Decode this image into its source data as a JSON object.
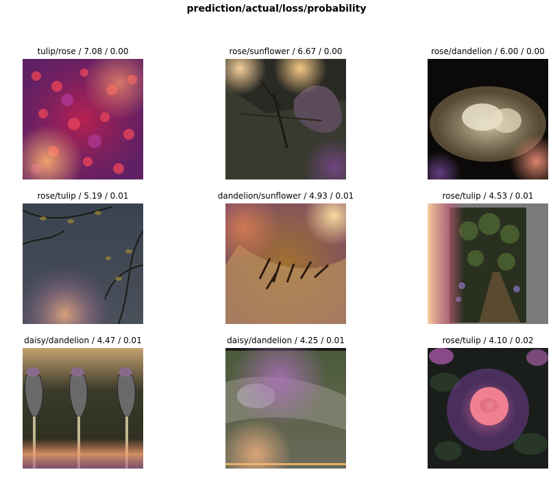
{
  "figure": {
    "title": "prediction/actual/loss/probability"
  },
  "chart_data": {
    "type": "image-grid",
    "title": "prediction/actual/loss/probability",
    "rows": 3,
    "cols": 3,
    "panels": [
      {
        "title": "tulip/rose / 7.08 / 0.00",
        "prediction": "tulip",
        "actual": "rose",
        "loss": 7.08,
        "probability": 0.0,
        "image": "rose-bush-heatmap-image"
      },
      {
        "title": "rose/sunflower / 6.67 / 0.00",
        "prediction": "rose",
        "actual": "sunflower",
        "loss": 6.67,
        "probability": 0.0,
        "image": "insect-on-flower-heatmap-image"
      },
      {
        "title": "rose/dandelion / 6.00 / 0.00",
        "prediction": "rose",
        "actual": "dandelion",
        "loss": 6.0,
        "probability": 0.0,
        "image": "dark-dish-heatmap-image"
      },
      {
        "title": "rose/tulip / 5.19 / 0.01",
        "prediction": "rose",
        "actual": "tulip",
        "loss": 5.19,
        "probability": 0.01,
        "image": "branches-sky-heatmap-image"
      },
      {
        "title": "dandelion/sunflower / 4.93 / 0.01",
        "prediction": "dandelion",
        "actual": "sunflower",
        "loss": 4.93,
        "probability": 0.01,
        "image": "sunflower-closeup-heatmap-image"
      },
      {
        "title": "rose/tulip / 4.53 / 0.01",
        "prediction": "rose",
        "actual": "tulip",
        "loss": 4.53,
        "probability": 0.01,
        "image": "garden-path-heatmap-image"
      },
      {
        "title": "daisy/dandelion / 4.47 / 0.01",
        "prediction": "daisy",
        "actual": "dandelion",
        "loss": 4.47,
        "probability": 0.01,
        "image": "dandelion-buds-heatmap-image"
      },
      {
        "title": "daisy/dandelion / 4.25 / 0.01",
        "prediction": "daisy",
        "actual": "dandelion",
        "loss": 4.25,
        "probability": 0.01,
        "image": "water-drop-leaf-heatmap-image"
      },
      {
        "title": "rose/tulip / 4.10 / 0.02",
        "prediction": "rose",
        "actual": "tulip",
        "loss": 4.1,
        "probability": 0.02,
        "image": "pink-rose-heatmap-image"
      }
    ]
  }
}
